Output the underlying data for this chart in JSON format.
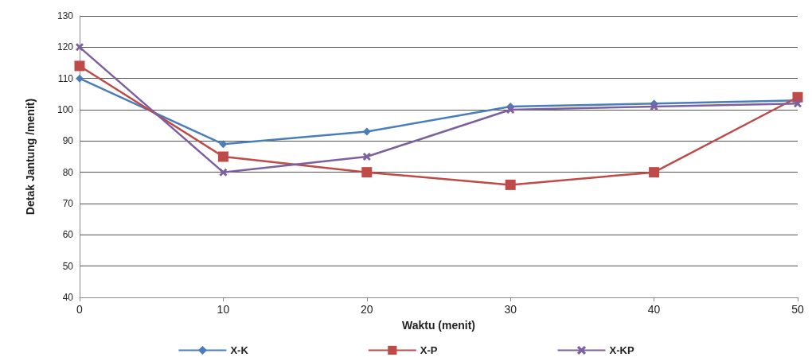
{
  "chart_data": {
    "type": "line",
    "xlabel": "Waktu (menit)",
    "ylabel": "Detak Jantung /menit)",
    "x": [
      0,
      10,
      20,
      30,
      40,
      50
    ],
    "series": [
      {
        "name": "X-K",
        "color": "#4a7ebb",
        "marker": "diamond",
        "values": [
          110,
          89,
          93,
          101,
          102,
          103
        ]
      },
      {
        "name": "X-P",
        "color": "#be4b48",
        "marker": "square",
        "values": [
          114,
          85,
          80,
          76,
          80,
          104
        ]
      },
      {
        "name": "X-KP",
        "color": "#7d60a0",
        "marker": "cross",
        "values": [
          120,
          80,
          85,
          100,
          101,
          102
        ]
      }
    ],
    "xlim": [
      0,
      50
    ],
    "xticks": [
      0,
      10,
      20,
      30,
      40,
      50
    ],
    "ylim": [
      40,
      130
    ],
    "yticks": [
      40,
      50,
      60,
      70,
      80,
      90,
      100,
      110,
      120,
      130
    ],
    "grid": "y",
    "legend": "bottom",
    "line_style": "solid"
  }
}
